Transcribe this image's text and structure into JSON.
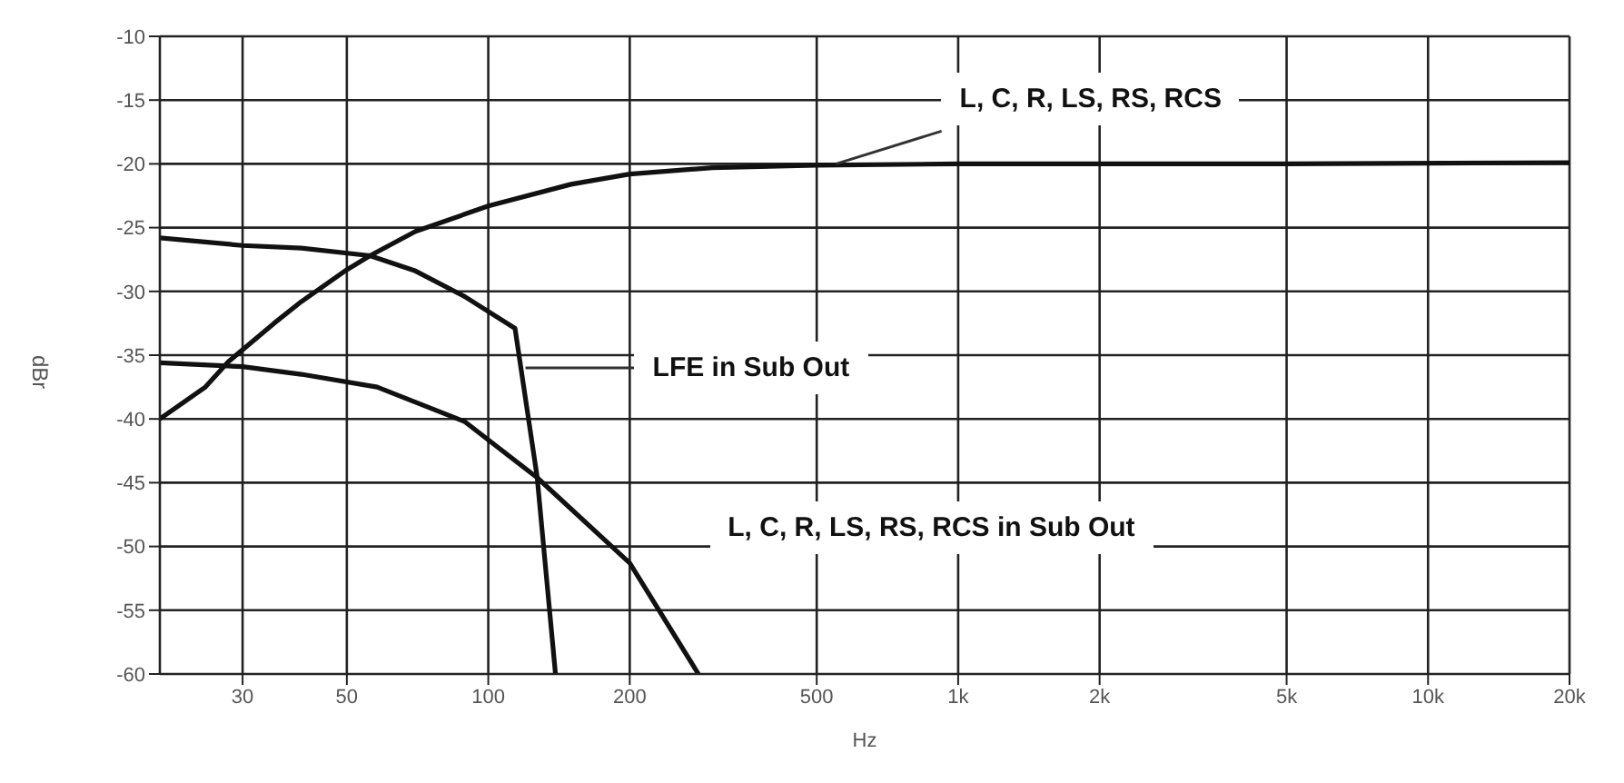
{
  "chart_data": {
    "type": "line",
    "xlabel": "Hz",
    "ylabel": "dBr",
    "log": "x",
    "grid": true,
    "marker": "none",
    "line_style": "solid",
    "xlim": [
      20,
      20000
    ],
    "ylim": [
      -60,
      -10
    ],
    "xticks": [
      30,
      50,
      100,
      200,
      500,
      {
        "value": 1000,
        "label": "1k"
      },
      {
        "value": 2000,
        "label": "2k"
      },
      {
        "value": 5000,
        "label": "5k"
      },
      {
        "value": 10000,
        "label": "10k"
      },
      {
        "value": 20000,
        "label": "20k"
      }
    ],
    "yticks": [
      -10,
      -15,
      -20,
      -25,
      -30,
      -35,
      -40,
      -45,
      -50,
      -55,
      -60
    ],
    "series": [
      {
        "color": "#111111",
        "x": [
          20,
          25,
          28,
          35,
          40,
          50,
          56,
          70,
          100,
          150,
          200,
          300,
          500,
          1000,
          5000,
          20000
        ],
        "values": [
          -40,
          -37.5,
          -35.5,
          -32.5,
          -30.8,
          -28.3,
          -27.2,
          -25.3,
          -23.3,
          -21.6,
          -20.8,
          -20.3,
          -20.1,
          -20,
          -20,
          -19.9
        ]
      },
      {
        "color": "#111111",
        "x": [
          20,
          30,
          40,
          56,
          70,
          89,
          114,
          127,
          139
        ],
        "values": [
          -25.8,
          -26.4,
          -26.6,
          -27.2,
          -28.4,
          -30.4,
          -32.9,
          -44.5,
          -60
        ]
      },
      {
        "color": "#111111",
        "x": [
          20,
          30,
          40,
          58,
          89,
          127,
          200,
          280
        ],
        "values": [
          -35.6,
          -35.9,
          -36.5,
          -37.5,
          -40.2,
          -44.6,
          -51.3,
          -60
        ]
      }
    ],
    "annotations": [
      {
        "text": "L, C, R, LS, RS, RCS",
        "x": 550,
        "y": -20
      },
      {
        "text": "LFE in Sub Out",
        "x": 120,
        "y": -36
      },
      "L, C, R, LS, RS, RCS in Sub Out"
    ]
  }
}
